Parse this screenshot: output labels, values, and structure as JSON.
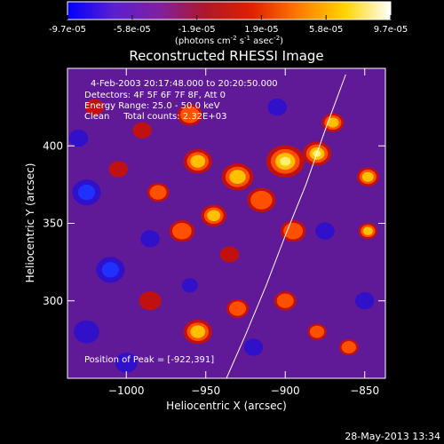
{
  "colorbar": {
    "tick_labels": [
      "-9.7e-05",
      "-5.8e-05",
      "-1.9e-05",
      "1.9e-05",
      "5.8e-05",
      "9.7e-05"
    ],
    "units_prefix": "(photons cm",
    "units_exp1": "-2",
    "units_mid": " s",
    "units_exp2": "-1",
    "units_mid2": " asec",
    "units_exp3": "-2",
    "units_suffix": ")"
  },
  "annotation": {
    "lines": [
      "4-Feb-2003 20:17:48.000 to 20:20:50.000",
      "Detectors: 4F 5F 6F 7F 8F, Att 0",
      "Energy Range: 25.0 - 50.0 keV",
      "Clean     Total counts: 2.32E+03"
    ],
    "peak": "Position of Peak = [-922,391]"
  },
  "footer_timestamp": "28-May-2013 13:34",
  "chart_data": {
    "type": "heatmap",
    "title": "Reconstructed RHESSI Image",
    "xlabel": "Heliocentric X (arcsec)",
    "ylabel": "Heliocentric Y (arcsec)",
    "xlim": [
      -1037,
      -837
    ],
    "ylim": [
      250,
      450
    ],
    "x_ticks": [
      -1000,
      -950,
      -900,
      -850
    ],
    "x_tick_labels": [
      "−1000",
      "−950",
      "−900",
      "−850"
    ],
    "y_ticks": [
      300,
      350,
      400
    ],
    "y_tick_labels": [
      "300",
      "350",
      "400"
    ],
    "color_range": [
      -9.7e-05,
      9.7e-05
    ],
    "colormap": [
      "#0000ff",
      "#5a1fd0",
      "#8020a0",
      "#b01828",
      "#e02000",
      "#ff7a00",
      "#ffd400",
      "#ffffff"
    ],
    "limb_curve": [
      [
        -937,
        250
      ],
      [
        -925,
        278
      ],
      [
        -912,
        310
      ],
      [
        -900,
        342
      ],
      [
        -887,
        375
      ],
      [
        -875,
        410
      ],
      [
        -862,
        446
      ]
    ],
    "blobs": [
      [
        -900,
        390,
        12,
        1.0
      ],
      [
        -880,
        395,
        9,
        0.9
      ],
      [
        -930,
        380,
        10,
        0.8
      ],
      [
        -945,
        355,
        8,
        0.7
      ],
      [
        -955,
        390,
        9,
        0.75
      ],
      [
        -915,
        365,
        9,
        0.65
      ],
      [
        -870,
        415,
        7,
        0.7
      ],
      [
        -848,
        380,
        7,
        0.85
      ],
      [
        -848,
        345,
        6,
        0.7
      ],
      [
        -895,
        345,
        8,
        0.55
      ],
      [
        -965,
        345,
        8,
        0.6
      ],
      [
        -980,
        370,
        7,
        0.5
      ],
      [
        -960,
        420,
        8,
        0.6
      ],
      [
        -985,
        300,
        7,
        0.45
      ],
      [
        -955,
        280,
        9,
        0.7
      ],
      [
        -930,
        295,
        7,
        0.5
      ],
      [
        -900,
        300,
        7,
        0.6
      ],
      [
        -880,
        280,
        6,
        0.55
      ],
      [
        -860,
        270,
        6,
        0.6
      ],
      [
        -1020,
        425,
        6,
        0.4
      ],
      [
        -935,
        330,
        6,
        0.45
      ],
      [
        -1005,
        385,
        6,
        0.35
      ],
      [
        -990,
        410,
        6,
        0.45
      ],
      [
        -1025,
        370,
        9,
        -0.9
      ],
      [
        -1010,
        320,
        9,
        -1.0
      ],
      [
        -1025,
        280,
        8,
        -0.7
      ],
      [
        -1000,
        260,
        7,
        -0.6
      ],
      [
        -985,
        340,
        6,
        -0.6
      ],
      [
        -1030,
        405,
        6,
        -0.5
      ],
      [
        -905,
        425,
        6,
        -0.5
      ],
      [
        -875,
        345,
        6,
        -0.5
      ],
      [
        -920,
        270,
        6,
        -0.4
      ],
      [
        -850,
        300,
        6,
        -0.35
      ],
      [
        -960,
        310,
        5,
        -0.4
      ]
    ]
  }
}
